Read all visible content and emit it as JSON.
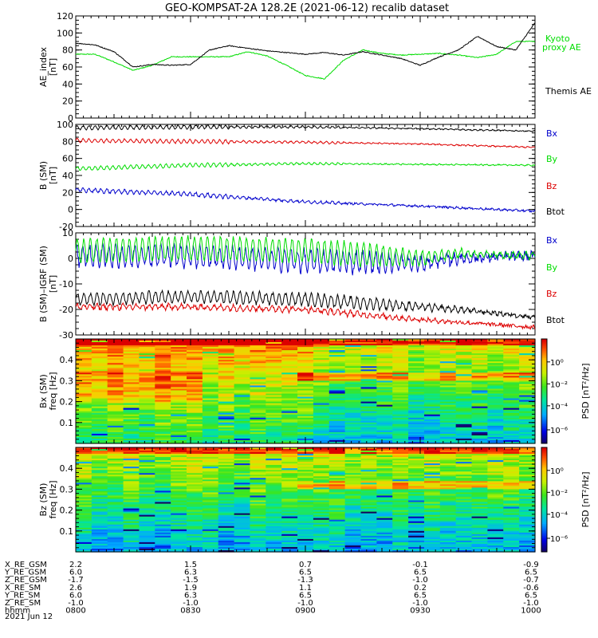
{
  "title": "GEO-KOMPSAT-2A 128.2E (2021-06-12) recalib dataset",
  "colors": {
    "black": "#000000",
    "red": "#dd0000",
    "green": "#00dd00",
    "blue": "#0000cc"
  },
  "chart_data": [
    {
      "type": "line",
      "panel": "ae",
      "ylabel": "AE_index [nT]",
      "ylabel_lines": [
        "AE_index",
        "[nT]"
      ],
      "ylim": [
        0,
        120
      ],
      "yticks": [
        0,
        20,
        40,
        60,
        80,
        100,
        120
      ],
      "x_range": [
        0,
        120
      ],
      "series": [
        {
          "name": "Kyoto proxy AE",
          "color": "#00dd00",
          "x": [
            0,
            5,
            10,
            15,
            20,
            25,
            30,
            35,
            40,
            45,
            50,
            55,
            60,
            65,
            70,
            75,
            80,
            85,
            90,
            95,
            100,
            105,
            110,
            115,
            120
          ],
          "values": [
            75,
            75,
            66,
            56,
            62,
            72,
            72,
            72,
            72,
            78,
            73,
            62,
            50,
            46,
            68,
            80,
            76,
            74,
            75,
            76,
            74,
            71,
            75,
            90,
            90
          ]
        },
        {
          "name": "Themis AE",
          "color": "#000000",
          "x": [
            0,
            5,
            10,
            15,
            20,
            25,
            30,
            35,
            40,
            45,
            50,
            55,
            60,
            65,
            70,
            75,
            80,
            85,
            90,
            95,
            100,
            105,
            110,
            115,
            120
          ],
          "values": [
            88,
            86,
            78,
            60,
            63,
            62,
            63,
            80,
            85,
            82,
            79,
            77,
            75,
            77,
            74,
            78,
            74,
            70,
            62,
            72,
            80,
            96,
            84,
            80,
            112
          ]
        }
      ],
      "legend": [
        "Kyoto",
        "proxy AE",
        "Themis AE"
      ]
    },
    {
      "type": "line",
      "panel": "b_sm",
      "ylabel": "B (SM) [nT]",
      "ylabel_lines": [
        "B (SM)",
        "[nT]"
      ],
      "ylim": [
        -20,
        100
      ],
      "yticks": [
        -20,
        0,
        20,
        40,
        60,
        80,
        100
      ],
      "x_range": [
        0,
        120
      ],
      "series": [
        {
          "name": "Btot",
          "color": "#000000",
          "x": [
            0,
            30,
            60,
            90,
            120
          ],
          "values": [
            96,
            97,
            97,
            95,
            92
          ]
        },
        {
          "name": "Bz",
          "color": "#dd0000",
          "x": [
            0,
            30,
            60,
            90,
            120
          ],
          "values": [
            81,
            80,
            79,
            77,
            73
          ]
        },
        {
          "name": "By",
          "color": "#00dd00",
          "x": [
            0,
            30,
            60,
            90,
            120
          ],
          "values": [
            48,
            52,
            54,
            53,
            52
          ]
        },
        {
          "name": "Bx",
          "color": "#0000cc",
          "x": [
            0,
            30,
            60,
            90,
            120
          ],
          "values": [
            23,
            18,
            9,
            4,
            -2
          ]
        }
      ],
      "legend": [
        "Bx",
        "By",
        "Bz",
        "Btot"
      ]
    },
    {
      "type": "line",
      "panel": "b_minus_igrf",
      "ylabel": "B (SM)-IGRF (SM) [nT]",
      "ylabel_lines": [
        "B (SM)–IGRF (SM)",
        "[nT]"
      ],
      "ylim": [
        -30,
        10
      ],
      "yticks": [
        -30,
        -20,
        -10,
        0,
        10
      ],
      "x_range": [
        0,
        120
      ],
      "series": [
        {
          "name": "Bx",
          "color": "#0000cc",
          "x": [
            0,
            30,
            60,
            90,
            100,
            120
          ],
          "values": [
            1,
            1,
            -1,
            -2,
            0,
            1
          ]
        },
        {
          "name": "By",
          "color": "#00dd00",
          "x": [
            0,
            30,
            60,
            90,
            100,
            120
          ],
          "values": [
            3,
            4,
            3,
            0,
            2,
            1
          ]
        },
        {
          "name": "Btot",
          "color": "#000000",
          "x": [
            0,
            30,
            60,
            90,
            100,
            120
          ],
          "values": [
            -16,
            -15,
            -16,
            -19,
            -20,
            -23
          ]
        },
        {
          "name": "Bz",
          "color": "#dd0000",
          "x": [
            0,
            30,
            60,
            90,
            100,
            120
          ],
          "values": [
            -19,
            -19,
            -20,
            -24,
            -25,
            -27
          ]
        }
      ],
      "legend": [
        "Bx",
        "By",
        "Bz",
        "Btot"
      ]
    },
    {
      "type": "heatmap",
      "panel": "bx_spec",
      "ylabel": "Bx (SM) freq [Hz]",
      "ylabel_lines": [
        "Bx (SM)",
        "freq [Hz]"
      ],
      "ylim": [
        0,
        0.5
      ],
      "yticks": [
        0.1,
        0.2,
        0.3,
        0.4
      ],
      "x_range": [
        0,
        120
      ],
      "zlabel": "PSD [nT²/Hz]",
      "zticks": [
        "10⁰",
        "10⁻²",
        "10⁻⁴",
        "10⁻⁶"
      ]
    },
    {
      "type": "heatmap",
      "panel": "bz_spec",
      "ylabel": "Bz (SM) freq [Hz]",
      "ylabel_lines": [
        "Bz (SM)",
        "freq [Hz]"
      ],
      "ylim": [
        0,
        0.5
      ],
      "yticks": [
        0.1,
        0.2,
        0.3,
        0.4
      ],
      "x_range": [
        0,
        120
      ],
      "zlabel": "PSD [nT²/Hz]",
      "zticks": [
        "10⁰",
        "10⁻²",
        "10⁻⁴",
        "10⁻⁶"
      ]
    }
  ],
  "orbit_table": {
    "rows": [
      {
        "label": "X_RE_GSM",
        "values": [
          "2.2",
          "1.5",
          "0.7",
          "-0.1",
          "-0.9"
        ]
      },
      {
        "label": "Y_RE_GSM",
        "values": [
          "6.0",
          "6.3",
          "6.5",
          "6.5",
          "6.5"
        ]
      },
      {
        "label": "Z_RE_GSM",
        "values": [
          "-1.7",
          "-1.5",
          "-1.3",
          "-1.0",
          "-0.7"
        ]
      },
      {
        "label": "X_RE_SM",
        "values": [
          "2.6",
          "1.9",
          "1.1",
          "0.2",
          "-0.6"
        ]
      },
      {
        "label": "Y_RE_SM",
        "values": [
          "6.0",
          "6.3",
          "6.5",
          "6.5",
          "6.5"
        ]
      },
      {
        "label": "Z_RE_SM",
        "values": [
          "-1.0",
          "-1.0",
          "-1.0",
          "-1.0",
          "-1.0"
        ]
      },
      {
        "label": "hhmm",
        "values": [
          "0800",
          "0830",
          "0900",
          "0930",
          "1000"
        ]
      }
    ],
    "date": "2021 Jun 12"
  }
}
